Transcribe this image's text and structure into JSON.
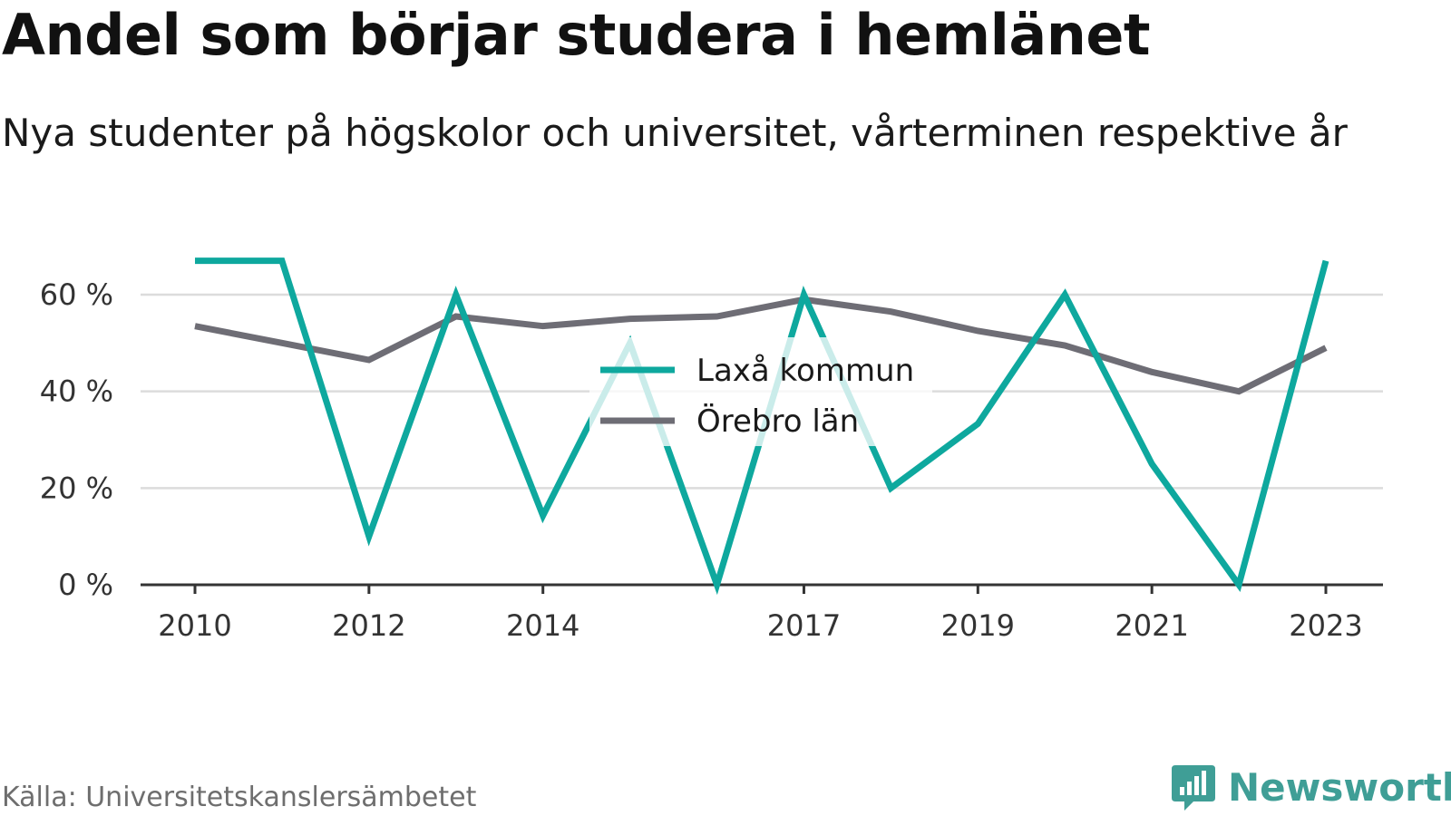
{
  "title": "Andel som börjar studera i hemlänet",
  "subtitle": "Nya studenter på högskolor och universitet, vårterminen respektive år",
  "source": "Källa: Universitetskanslersämbetet",
  "brand": {
    "name": "Newsworthy",
    "icon": "newsworthy-logo-icon",
    "color": "#3f9e96"
  },
  "chart_data": {
    "type": "line",
    "x": [
      2010,
      2011,
      2012,
      2013,
      2014,
      2015,
      2016,
      2017,
      2018,
      2019,
      2020,
      2021,
      2022,
      2023
    ],
    "x_tick_labels": [
      "2010",
      "2012",
      "2014",
      "2017",
      "2019",
      "2021",
      "2023"
    ],
    "y_tick_values": [
      0,
      20,
      40,
      60
    ],
    "y_tick_labels": [
      "0 %",
      "20 %",
      "40 %",
      "60 %"
    ],
    "ylim": [
      0,
      67
    ],
    "xlim": [
      2009.4,
      2023.65
    ],
    "grid": true,
    "legend_position": "center",
    "series": [
      {
        "name": "Laxå kommun",
        "color": "#0ea89e",
        "values": [
          67,
          67,
          10,
          60,
          14.3,
          50,
          0,
          60,
          20,
          33.3,
          60,
          25,
          0,
          67
        ]
      },
      {
        "name": "Örebro län",
        "color": "#6e6d75",
        "values": [
          53.5,
          50,
          46.5,
          55.5,
          53.5,
          55,
          55.5,
          59,
          56.5,
          52.5,
          49.5,
          44,
          40,
          49
        ]
      }
    ]
  }
}
